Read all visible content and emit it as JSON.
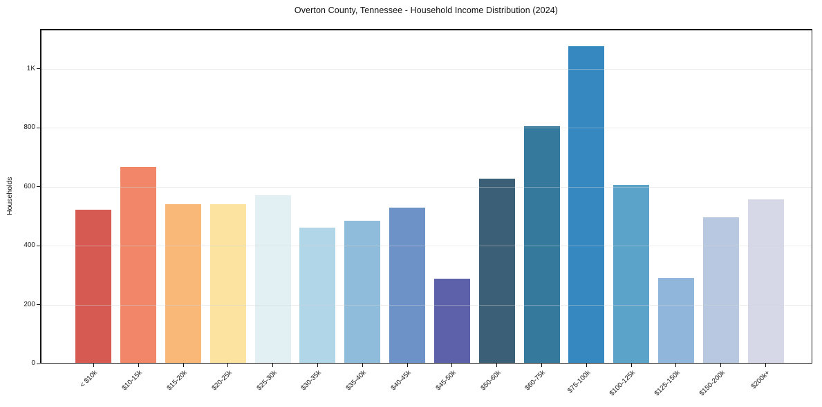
{
  "figure": {
    "kind": "static-chart-image"
  },
  "chart_data": {
    "type": "bar",
    "title": "Overton County, Tennessee - Household Income Distribution (2024)",
    "xlabel": "",
    "ylabel": "Households",
    "categories": [
      "< $10k",
      "$10-15k",
      "$15-20k",
      "$20-25k",
      "$25-30k",
      "$30-35k",
      "$35-40k",
      "$40-45k",
      "$45-50k",
      "$50-60k",
      "$60-75k",
      "$75-100k",
      "$100-125k",
      "$125-150k",
      "$150-200k",
      "$200k+"
    ],
    "values": [
      523,
      668,
      541,
      541,
      571,
      460,
      484,
      529,
      288,
      628,
      804,
      1076,
      607,
      290,
      497,
      556
    ],
    "bar_colors": [
      "#d65a52",
      "#f18768",
      "#fab878",
      "#fce3a0",
      "#e3f0f3",
      "#b0d6e7",
      "#8fbcdb",
      "#6d92c8",
      "#5c61aa",
      "#3b5f76",
      "#35799d",
      "#3689c0",
      "#5ba3c9",
      "#90b6db",
      "#b8c8e0",
      "#d6d8e7"
    ],
    "yticks": [
      {
        "label": "0",
        "value": 0
      },
      {
        "label": "200",
        "value": 200
      },
      {
        "label": "400",
        "value": 400
      },
      {
        "label": "600",
        "value": 600
      },
      {
        "label": "800",
        "value": 800
      },
      {
        "label": "1K",
        "value": 1000
      }
    ],
    "ylim": [
      0,
      1135
    ],
    "grid": "horizontal-over-bars",
    "legend": "none",
    "background_color": "#ffffff",
    "spine_color": "#111111"
  }
}
